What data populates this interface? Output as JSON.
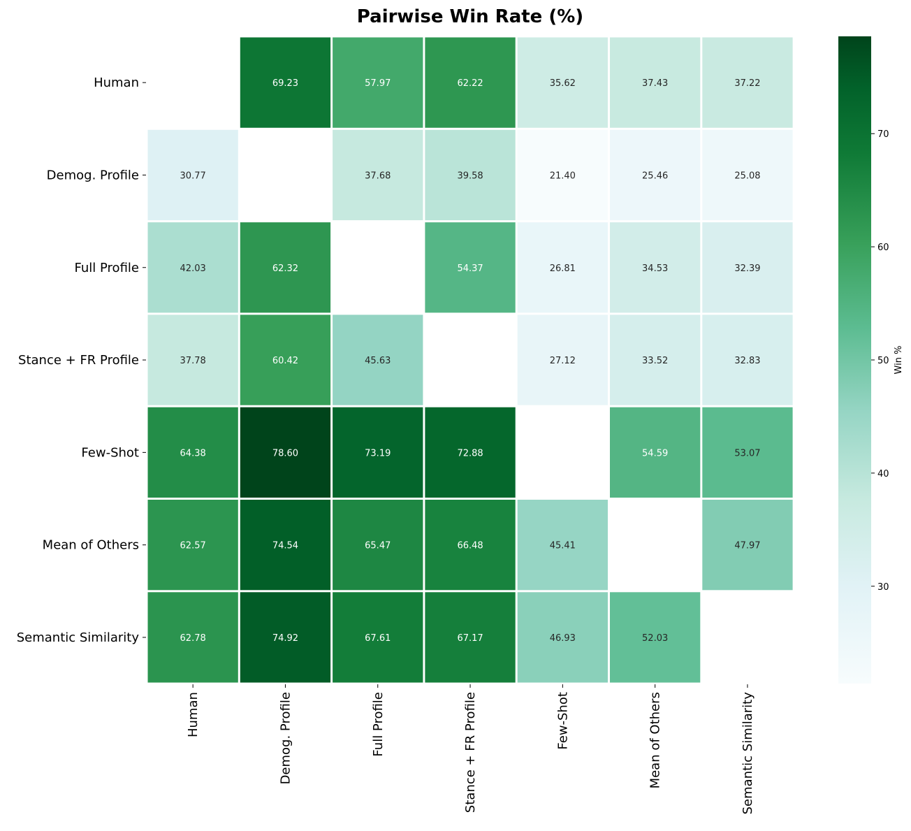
{
  "chart_data": {
    "type": "heatmap",
    "title": "Pairwise Win Rate (%)",
    "rows": [
      "Human",
      "Demog. Profile",
      "Full Profile",
      "Stance + FR Profile",
      "Few-Shot",
      "Mean of Others",
      "Semantic Similarity"
    ],
    "columns": [
      "Human",
      "Demog. Profile",
      "Full Profile",
      "Stance + FR Profile",
      "Few-Shot",
      "Mean of Others",
      "Semantic Similarity"
    ],
    "values": [
      [
        null,
        69.23,
        57.97,
        62.22,
        35.62,
        37.43,
        37.22
      ],
      [
        30.77,
        null,
        37.68,
        39.58,
        21.4,
        25.46,
        25.08
      ],
      [
        42.03,
        62.32,
        null,
        54.37,
        26.81,
        34.53,
        32.39
      ],
      [
        37.78,
        60.42,
        45.63,
        null,
        27.12,
        33.52,
        32.83
      ],
      [
        64.38,
        78.6,
        73.19,
        72.88,
        null,
        54.59,
        53.07
      ],
      [
        62.57,
        74.54,
        65.47,
        66.48,
        45.41,
        null,
        47.97
      ],
      [
        62.78,
        74.92,
        67.61,
        67.17,
        46.93,
        52.03,
        null
      ]
    ],
    "colorbar": {
      "label": "Win %",
      "min": 21.4,
      "max": 78.6,
      "ticks": [
        30,
        40,
        50,
        60,
        70
      ],
      "colormap": "greens"
    }
  }
}
